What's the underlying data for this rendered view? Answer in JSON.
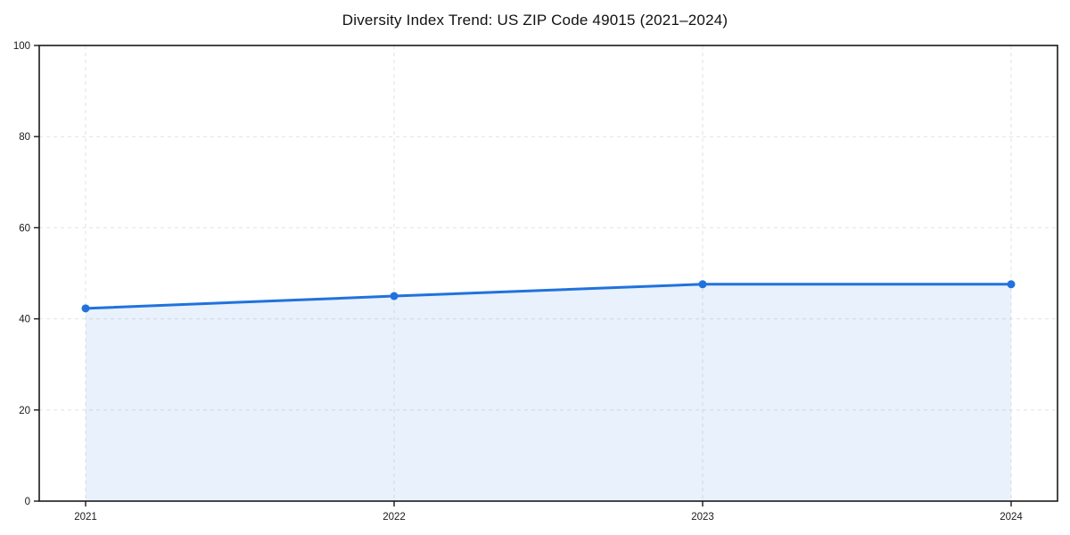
{
  "chart_data": {
    "type": "area",
    "title": "Diversity Index Trend: US ZIP Code 49015 (2021–2024)",
    "categories": [
      "2021",
      "2022",
      "2023",
      "2024"
    ],
    "series": [
      {
        "name": "Diversity Index",
        "values": [
          42.3,
          45.0,
          47.6,
          47.6
        ]
      }
    ],
    "xlabel": "",
    "ylabel": "",
    "ylim": [
      0,
      100
    ],
    "yticks": [
      0,
      20,
      40,
      60,
      80,
      100
    ],
    "grid": true,
    "grid_style": "dashed",
    "legend_position": "none",
    "marker": "circle",
    "colors": {
      "line": "#2172DD",
      "fill": "rgba(33, 114, 221, 0.10)",
      "grid": "#E2E2E2",
      "spine": "#1A1A1A",
      "tick_text": "#1A1A1A",
      "background": "#FFFFFF"
    }
  }
}
